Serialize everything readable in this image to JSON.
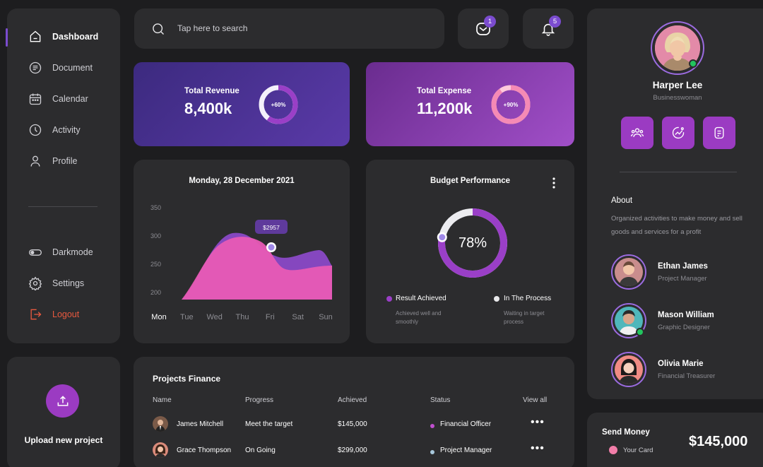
{
  "nav": {
    "items": [
      {
        "label": "Dashboard",
        "icon": "home-icon",
        "active": true
      },
      {
        "label": "Document",
        "icon": "document-icon"
      },
      {
        "label": "Calendar",
        "icon": "calendar-icon"
      },
      {
        "label": "Activity",
        "icon": "clock-icon"
      },
      {
        "label": "Profile",
        "icon": "user-icon"
      }
    ],
    "darkmode": "Darkmode",
    "settings": "Settings",
    "logout": "Logout"
  },
  "upload": {
    "label": "Upload new project",
    "icon": "upload-icon"
  },
  "search": {
    "placeholder": "Tap here to search"
  },
  "notifications": {
    "mail_count": "1",
    "bell_count": "5"
  },
  "stats": {
    "revenue": {
      "label": "Total Revenue",
      "value": "8,400k",
      "percent_label": "+60%",
      "percent": 60
    },
    "expense": {
      "label": "Total Expense",
      "value": "11,200k",
      "percent_label": "+90%",
      "percent": 90
    }
  },
  "chart_data": {
    "type": "area",
    "title": "Monday, 28 December 2021",
    "categories": [
      "Mon",
      "Tue",
      "Wed",
      "Thu",
      "Fri",
      "Sat",
      "Sun"
    ],
    "y_ticks": [
      350,
      300,
      250,
      200
    ],
    "ylim": [
      200,
      350
    ],
    "active_category": "Mon",
    "tooltip": "$2957",
    "colors": {
      "pink": "#e85bb5",
      "purple": "#8a49c7",
      "tooltip": "#5f3a9c"
    }
  },
  "budget": {
    "title": "Budget Performance",
    "percent_label": "78%",
    "percent": 78,
    "legend": [
      {
        "label": "Result Achieved",
        "sub": "Achieved well and smoothly",
        "color": "#9a3fc7"
      },
      {
        "label": "In The Process",
        "sub": "Waiting in target process",
        "color": "#e8e8ea"
      }
    ]
  },
  "projects": {
    "title": "Projects Finance",
    "headers": [
      "Name",
      "Progress",
      "Achieved",
      "Status",
      "View all"
    ],
    "rows": [
      {
        "name": "James Mitchell",
        "progress": "Meet the target",
        "achieved": "$145,000",
        "status": "Financial Officer",
        "status_color": "#c04fcf",
        "more": "•••"
      },
      {
        "name": "Grace Thompson",
        "progress": "On Going",
        "achieved": "$299,000",
        "status": "Project Manager",
        "status_color": "#a8c8dc",
        "more": "•••"
      }
    ]
  },
  "profile": {
    "name": "Harper Lee",
    "role": "Businesswoman",
    "about_title": "About",
    "about_text": "Organized activities to make money and sell goods and services for a profit",
    "actions": [
      "users-icon",
      "chart-icon",
      "note-icon"
    ],
    "contacts": [
      {
        "name": "Ethan James",
        "role": "Project Manager",
        "online": false
      },
      {
        "name": "Mason William",
        "role": "Graphic Designer",
        "online": true
      },
      {
        "name": "Olivia Marie",
        "role": "Financial Treasurer",
        "online": false
      }
    ]
  },
  "send": {
    "title": "Send Money",
    "card": "Your Card",
    "amount": "$145,000"
  }
}
